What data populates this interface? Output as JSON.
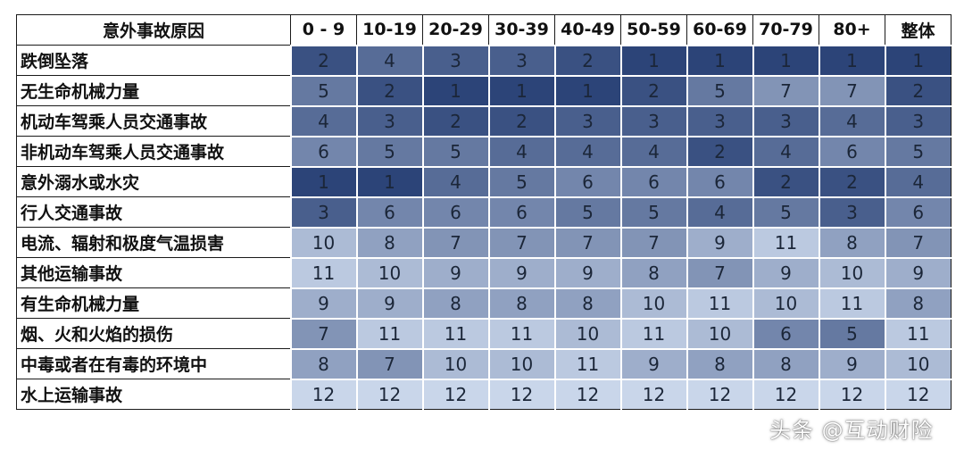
{
  "chart_data": {
    "type": "heatmap",
    "corner_header": "意外事故原因",
    "columns": [
      "0 - 9",
      "10-19",
      "20-29",
      "30-39",
      "40-49",
      "50-59",
      "60-69",
      "70-79",
      "80+",
      "整体"
    ],
    "rows": [
      {
        "label": "跌倒坠落",
        "values": [
          2,
          4,
          3,
          3,
          2,
          1,
          1,
          1,
          1,
          1
        ]
      },
      {
        "label": "无生命机械力量",
        "values": [
          5,
          2,
          1,
          1,
          1,
          2,
          5,
          7,
          7,
          2
        ]
      },
      {
        "label": "机动车驾乘人员交通事故",
        "values": [
          4,
          3,
          2,
          2,
          3,
          3,
          3,
          3,
          4,
          3
        ]
      },
      {
        "label": "非机动车驾乘人员交通事故",
        "values": [
          6,
          5,
          5,
          4,
          4,
          4,
          2,
          4,
          6,
          5
        ]
      },
      {
        "label": "意外溺水或水灾",
        "values": [
          1,
          1,
          4,
          5,
          6,
          6,
          6,
          2,
          2,
          4
        ]
      },
      {
        "label": "行人交通事故",
        "values": [
          3,
          6,
          6,
          6,
          5,
          5,
          4,
          5,
          3,
          6
        ]
      },
      {
        "label": "电流、辐射和极度气温损害",
        "values": [
          10,
          8,
          7,
          7,
          7,
          7,
          9,
          11,
          8,
          7
        ]
      },
      {
        "label": "其他运输事故",
        "values": [
          11,
          10,
          9,
          9,
          9,
          8,
          7,
          9,
          10,
          9
        ]
      },
      {
        "label": "有生命机械力量",
        "values": [
          9,
          9,
          8,
          8,
          8,
          10,
          11,
          10,
          11,
          8
        ]
      },
      {
        "label": "烟、火和火焰的损伤",
        "values": [
          7,
          11,
          11,
          11,
          10,
          11,
          10,
          6,
          5,
          11
        ]
      },
      {
        "label": "中毒或者在有毒的环境中",
        "values": [
          8,
          7,
          10,
          10,
          11,
          9,
          8,
          8,
          9,
          10
        ]
      },
      {
        "label": "水上运输事故",
        "values": [
          12,
          12,
          12,
          12,
          12,
          12,
          12,
          12,
          12,
          12
        ]
      }
    ],
    "color_scale": {
      "1": "#2c4478",
      "12": "#c9d6ea"
    }
  },
  "watermark": "头条 @互动财险"
}
